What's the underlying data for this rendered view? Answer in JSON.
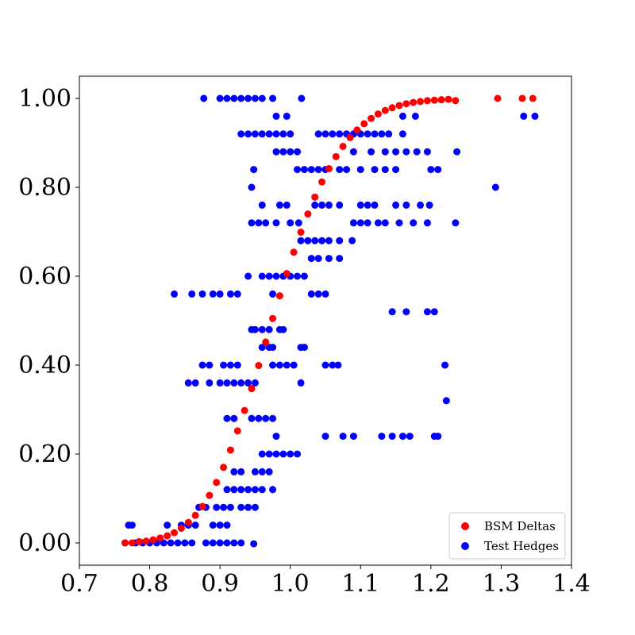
{
  "chart_data": {
    "type": "scatter",
    "title": "",
    "xlabel": "",
    "ylabel": "",
    "xlim": [
      0.7,
      1.4
    ],
    "ylim": [
      -0.05,
      1.05
    ],
    "x_ticks": [
      {
        "value": 0.7,
        "label": "0.7"
      },
      {
        "value": 0.8,
        "label": "0.8"
      },
      {
        "value": 0.9,
        "label": "0.9"
      },
      {
        "value": 1.0,
        "label": "1.0"
      },
      {
        "value": 1.1,
        "label": "1.1"
      },
      {
        "value": 1.2,
        "label": "1.2"
      },
      {
        "value": 1.3,
        "label": "1.3"
      },
      {
        "value": 1.4,
        "label": "1.4"
      }
    ],
    "y_ticks": [
      {
        "value": 0.0,
        "label": "0.00"
      },
      {
        "value": 0.2,
        "label": "0.20"
      },
      {
        "value": 0.4,
        "label": "0.40"
      },
      {
        "value": 0.6,
        "label": "0.60"
      },
      {
        "value": 0.8,
        "label": "0.80"
      },
      {
        "value": 1.0,
        "label": "1.00"
      }
    ],
    "grid": false,
    "legend": {
      "placement": "lower-right"
    },
    "series": [
      {
        "name": "BSM Deltas",
        "color": "#ff0000",
        "marker": "circle",
        "points": [
          [
            0.765,
            0.0
          ],
          [
            0.775,
            0.0
          ],
          [
            0.785,
            0.003
          ],
          [
            0.795,
            0.004
          ],
          [
            0.805,
            0.007
          ],
          [
            0.815,
            0.011
          ],
          [
            0.825,
            0.016
          ],
          [
            0.835,
            0.023
          ],
          [
            0.845,
            0.033
          ],
          [
            0.855,
            0.046
          ],
          [
            0.865,
            0.062
          ],
          [
            0.875,
            0.082
          ],
          [
            0.885,
            0.107
          ],
          [
            0.895,
            0.136
          ],
          [
            0.905,
            0.17
          ],
          [
            0.915,
            0.209
          ],
          [
            0.925,
            0.252
          ],
          [
            0.935,
            0.298
          ],
          [
            0.945,
            0.347
          ],
          [
            0.955,
            0.399
          ],
          [
            0.965,
            0.452
          ],
          [
            0.975,
            0.505
          ],
          [
            0.985,
            0.556
          ],
          [
            0.995,
            0.606
          ],
          [
            1.005,
            0.654
          ],
          [
            1.015,
            0.699
          ],
          [
            1.025,
            0.74
          ],
          [
            1.035,
            0.778
          ],
          [
            1.045,
            0.812
          ],
          [
            1.055,
            0.842
          ],
          [
            1.065,
            0.869
          ],
          [
            1.075,
            0.892
          ],
          [
            1.085,
            0.912
          ],
          [
            1.095,
            0.929
          ],
          [
            1.105,
            0.943
          ],
          [
            1.115,
            0.955
          ],
          [
            1.125,
            0.965
          ],
          [
            1.135,
            0.973
          ],
          [
            1.145,
            0.979
          ],
          [
            1.155,
            0.984
          ],
          [
            1.165,
            0.988
          ],
          [
            1.175,
            0.991
          ],
          [
            1.185,
            0.993
          ],
          [
            1.195,
            0.995
          ],
          [
            1.205,
            0.996
          ],
          [
            1.215,
            0.997
          ],
          [
            1.225,
            0.998
          ],
          [
            1.235,
            0.995
          ],
          [
            1.295,
            1.0
          ],
          [
            1.33,
            1.0
          ],
          [
            1.345,
            1.0
          ]
        ]
      },
      {
        "name": "Test Hedges",
        "color": "#0000ff",
        "marker": "circle",
        "points": [
          [
            0.765,
            0.0
          ],
          [
            0.78,
            0.0
          ],
          [
            0.79,
            0.0
          ],
          [
            0.8,
            0.0
          ],
          [
            0.81,
            0.0
          ],
          [
            0.82,
            0.0
          ],
          [
            0.83,
            0.0
          ],
          [
            0.84,
            0.0
          ],
          [
            0.85,
            0.0
          ],
          [
            0.86,
            0.0
          ],
          [
            0.88,
            0.0
          ],
          [
            0.89,
            0.0
          ],
          [
            0.9,
            0.0
          ],
          [
            0.91,
            0.0
          ],
          [
            0.92,
            0.0
          ],
          [
            0.93,
            0.0
          ],
          [
            0.948,
            -0.002
          ],
          [
            0.77,
            0.04
          ],
          [
            0.775,
            0.04
          ],
          [
            0.825,
            0.04
          ],
          [
            0.845,
            0.04
          ],
          [
            0.855,
            0.04
          ],
          [
            0.865,
            0.04
          ],
          [
            0.89,
            0.04
          ],
          [
            0.9,
            0.04
          ],
          [
            0.91,
            0.04
          ],
          [
            0.87,
            0.08
          ],
          [
            0.88,
            0.08
          ],
          [
            0.895,
            0.08
          ],
          [
            0.905,
            0.08
          ],
          [
            0.915,
            0.08
          ],
          [
            0.93,
            0.08
          ],
          [
            0.94,
            0.08
          ],
          [
            0.95,
            0.08
          ],
          [
            0.91,
            0.12
          ],
          [
            0.92,
            0.12
          ],
          [
            0.93,
            0.12
          ],
          [
            0.94,
            0.12
          ],
          [
            0.95,
            0.12
          ],
          [
            0.96,
            0.12
          ],
          [
            0.975,
            0.12
          ],
          [
            0.92,
            0.16
          ],
          [
            0.93,
            0.16
          ],
          [
            0.95,
            0.16
          ],
          [
            0.96,
            0.16
          ],
          [
            0.97,
            0.16
          ],
          [
            0.96,
            0.2
          ],
          [
            0.97,
            0.2
          ],
          [
            0.98,
            0.2
          ],
          [
            0.99,
            0.2
          ],
          [
            1.0,
            0.2
          ],
          [
            1.01,
            0.2
          ],
          [
            0.98,
            0.24
          ],
          [
            1.05,
            0.24
          ],
          [
            1.075,
            0.24
          ],
          [
            1.09,
            0.24
          ],
          [
            1.13,
            0.24
          ],
          [
            1.145,
            0.24
          ],
          [
            1.16,
            0.24
          ],
          [
            1.17,
            0.24
          ],
          [
            1.205,
            0.24
          ],
          [
            1.21,
            0.24
          ],
          [
            0.91,
            0.28
          ],
          [
            0.92,
            0.28
          ],
          [
            0.945,
            0.28
          ],
          [
            0.955,
            0.28
          ],
          [
            0.965,
            0.28
          ],
          [
            0.975,
            0.28
          ],
          [
            1.222,
            0.32
          ],
          [
            0.855,
            0.36
          ],
          [
            0.865,
            0.36
          ],
          [
            0.885,
            0.36
          ],
          [
            0.9,
            0.36
          ],
          [
            0.91,
            0.36
          ],
          [
            0.92,
            0.36
          ],
          [
            0.93,
            0.36
          ],
          [
            0.94,
            0.36
          ],
          [
            0.95,
            0.36
          ],
          [
            1.015,
            0.36
          ],
          [
            0.875,
            0.4
          ],
          [
            0.885,
            0.4
          ],
          [
            0.905,
            0.4
          ],
          [
            0.915,
            0.4
          ],
          [
            0.925,
            0.4
          ],
          [
            0.975,
            0.4
          ],
          [
            0.985,
            0.4
          ],
          [
            0.995,
            0.4
          ],
          [
            1.005,
            0.4
          ],
          [
            1.05,
            0.4
          ],
          [
            1.06,
            0.4
          ],
          [
            1.068,
            0.4
          ],
          [
            1.22,
            0.4
          ],
          [
            0.96,
            0.44
          ],
          [
            0.97,
            0.44
          ],
          [
            0.975,
            0.44
          ],
          [
            1.015,
            0.44
          ],
          [
            1.02,
            0.44
          ],
          [
            0.945,
            0.48
          ],
          [
            0.95,
            0.48
          ],
          [
            0.96,
            0.48
          ],
          [
            0.97,
            0.48
          ],
          [
            0.985,
            0.48
          ],
          [
            0.99,
            0.48
          ],
          [
            1.145,
            0.52
          ],
          [
            1.165,
            0.52
          ],
          [
            1.195,
            0.52
          ],
          [
            1.205,
            0.52
          ],
          [
            0.835,
            0.56
          ],
          [
            0.86,
            0.56
          ],
          [
            0.875,
            0.56
          ],
          [
            0.89,
            0.56
          ],
          [
            0.9,
            0.56
          ],
          [
            0.915,
            0.56
          ],
          [
            0.925,
            0.56
          ],
          [
            0.975,
            0.56
          ],
          [
            1.03,
            0.56
          ],
          [
            1.04,
            0.56
          ],
          [
            1.05,
            0.56
          ],
          [
            0.94,
            0.6
          ],
          [
            0.96,
            0.6
          ],
          [
            0.97,
            0.6
          ],
          [
            0.98,
            0.6
          ],
          [
            0.99,
            0.6
          ],
          [
            1.0,
            0.6
          ],
          [
            1.01,
            0.6
          ],
          [
            1.02,
            0.6
          ],
          [
            1.03,
            0.64
          ],
          [
            1.04,
            0.64
          ],
          [
            1.055,
            0.64
          ],
          [
            1.07,
            0.64
          ],
          [
            1.015,
            0.68
          ],
          [
            1.025,
            0.68
          ],
          [
            1.035,
            0.68
          ],
          [
            1.045,
            0.68
          ],
          [
            1.055,
            0.68
          ],
          [
            1.07,
            0.68
          ],
          [
            1.088,
            0.68
          ],
          [
            0.945,
            0.72
          ],
          [
            0.955,
            0.72
          ],
          [
            0.965,
            0.72
          ],
          [
            0.98,
            0.72
          ],
          [
            1.0,
            0.72
          ],
          [
            1.012,
            0.72
          ],
          [
            1.09,
            0.72
          ],
          [
            1.1,
            0.72
          ],
          [
            1.11,
            0.72
          ],
          [
            1.125,
            0.72
          ],
          [
            1.135,
            0.72
          ],
          [
            1.155,
            0.72
          ],
          [
            1.175,
            0.72
          ],
          [
            1.195,
            0.72
          ],
          [
            1.235,
            0.72
          ],
          [
            0.96,
            0.76
          ],
          [
            0.985,
            0.76
          ],
          [
            0.995,
            0.76
          ],
          [
            1.035,
            0.76
          ],
          [
            1.045,
            0.76
          ],
          [
            1.055,
            0.76
          ],
          [
            1.07,
            0.76
          ],
          [
            1.1,
            0.76
          ],
          [
            1.11,
            0.76
          ],
          [
            1.12,
            0.76
          ],
          [
            1.15,
            0.76
          ],
          [
            1.165,
            0.76
          ],
          [
            1.185,
            0.76
          ],
          [
            1.198,
            0.76
          ],
          [
            0.945,
            0.8
          ],
          [
            1.292,
            0.8
          ],
          [
            0.948,
            0.84
          ],
          [
            1.01,
            0.84
          ],
          [
            1.02,
            0.84
          ],
          [
            1.03,
            0.84
          ],
          [
            1.04,
            0.84
          ],
          [
            1.05,
            0.84
          ],
          [
            1.07,
            0.84
          ],
          [
            1.08,
            0.84
          ],
          [
            1.1,
            0.84
          ],
          [
            1.12,
            0.84
          ],
          [
            1.135,
            0.84
          ],
          [
            1.15,
            0.84
          ],
          [
            1.2,
            0.84
          ],
          [
            1.21,
            0.84
          ],
          [
            0.98,
            0.88
          ],
          [
            0.99,
            0.88
          ],
          [
            1.0,
            0.88
          ],
          [
            1.01,
            0.88
          ],
          [
            1.09,
            0.88
          ],
          [
            1.115,
            0.88
          ],
          [
            1.135,
            0.88
          ],
          [
            1.15,
            0.88
          ],
          [
            1.165,
            0.88
          ],
          [
            1.18,
            0.88
          ],
          [
            1.195,
            0.88
          ],
          [
            1.237,
            0.88
          ],
          [
            0.93,
            0.92
          ],
          [
            0.94,
            0.92
          ],
          [
            0.95,
            0.92
          ],
          [
            0.96,
            0.92
          ],
          [
            0.97,
            0.92
          ],
          [
            0.98,
            0.92
          ],
          [
            0.99,
            0.92
          ],
          [
            1.0,
            0.92
          ],
          [
            1.04,
            0.92
          ],
          [
            1.05,
            0.92
          ],
          [
            1.06,
            0.92
          ],
          [
            1.07,
            0.92
          ],
          [
            1.08,
            0.92
          ],
          [
            1.09,
            0.92
          ],
          [
            1.1,
            0.92
          ],
          [
            1.11,
            0.92
          ],
          [
            1.12,
            0.92
          ],
          [
            1.13,
            0.92
          ],
          [
            1.14,
            0.92
          ],
          [
            1.16,
            0.92
          ],
          [
            0.98,
            0.96
          ],
          [
            0.995,
            0.96
          ],
          [
            1.16,
            0.96
          ],
          [
            1.178,
            0.96
          ],
          [
            1.332,
            0.96
          ],
          [
            1.348,
            0.96
          ],
          [
            0.877,
            1.0
          ],
          [
            0.9,
            1.0
          ],
          [
            0.91,
            1.0
          ],
          [
            0.92,
            1.0
          ],
          [
            0.93,
            1.0
          ],
          [
            0.94,
            1.0
          ],
          [
            0.95,
            1.0
          ],
          [
            0.96,
            1.0
          ],
          [
            0.975,
            1.0
          ],
          [
            1.016,
            1.0
          ]
        ]
      }
    ]
  }
}
